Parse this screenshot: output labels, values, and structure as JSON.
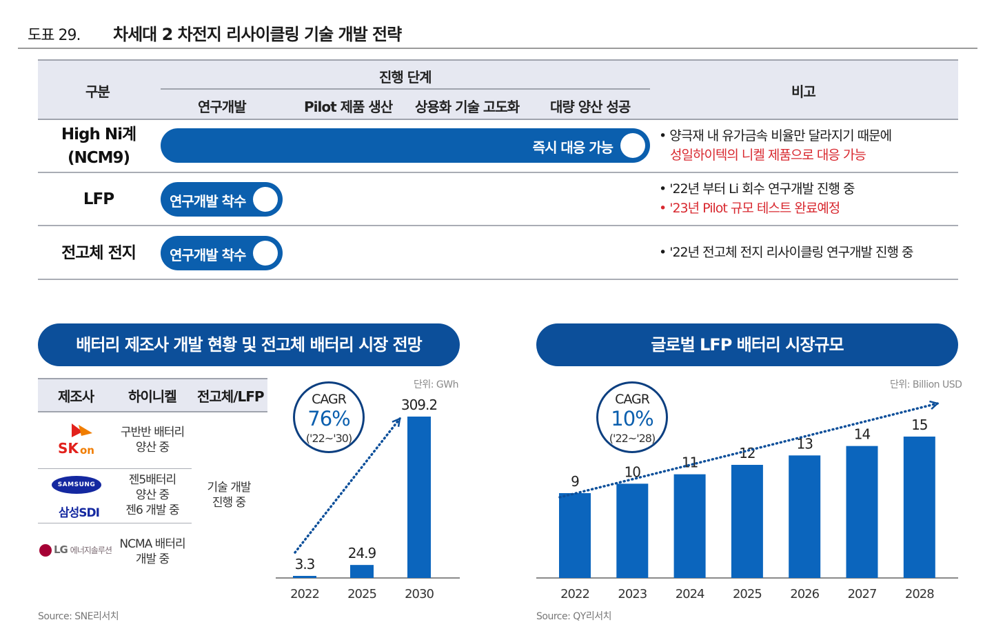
{
  "figure": {
    "number": "도표 29.",
    "title": "차세대 2 차전지 리사이클링 기술 개발 전략"
  },
  "strategy_table": {
    "header": {
      "category": "구분",
      "stage_group": "진행 단계",
      "stages": [
        "연구개발",
        "Pilot 제품 생산",
        "상용화 기술 고도화",
        "대량 양산 성공"
      ],
      "remarks": "비고"
    },
    "rows": [
      {
        "label_line1": "High Ni계",
        "label_line2": "(NCM9)",
        "bar_label": "즉시 대응 가능",
        "progress": 1.0,
        "notes": [
          {
            "text": "• 양극재 내 유가금속 비율만 달라지기 때문에",
            "color": "#1a1a1a"
          },
          {
            "text": "성일하이텍의 니켈 제품으로 대응 가능",
            "color": "#d8282f"
          }
        ]
      },
      {
        "label_line1": "LFP",
        "bar_label": "연구개발 착수",
        "progress": 0.25,
        "notes": [
          {
            "text": "• '22년 부터 Li 회수 연구개발 진행 중",
            "color": "#1a1a1a"
          },
          {
            "text": "• '23년 Pilot 규모 테스트 완료예정",
            "color": "#d8282f"
          }
        ]
      },
      {
        "label_line1": "전고체 전지",
        "bar_label": "연구개발 착수",
        "progress": 0.25,
        "notes": [
          {
            "text": "• '22년 전고체 전지 리사이클링 연구개발 진행 중",
            "color": "#1a1a1a"
          }
        ]
      }
    ]
  },
  "left_panel": {
    "banner": "배터리 제조사 개발 현황 및 전고체 배터리 시장 전망",
    "unit": "단위: GWh",
    "source": "Source: SNE리서치",
    "maker_table": {
      "headers": [
        "제조사",
        "하이니켈",
        "전고체/LFP"
      ],
      "rows": [
        {
          "maker": "SK on",
          "maker_logo": "SK",
          "maker_logo_suffix": "on",
          "high_nickel": [
            "구반반 배터리",
            "양산 중"
          ]
        },
        {
          "maker": "삼성SDI",
          "maker_logo": "SAMSUNG",
          "maker_sub": "삼성SDI",
          "high_nickel": [
            "젠5배터리",
            "양산 중",
            "젠6 개발 중"
          ]
        },
        {
          "maker": "LG에너지솔루션",
          "maker_logo": "LG",
          "maker_sub": "에너지솔루션",
          "high_nickel": [
            "NCMA 배터리",
            "개발 중"
          ]
        }
      ],
      "solid_state_lfp": [
        "기술 개발",
        "진행 중"
      ]
    },
    "cagr": {
      "label": "CAGR",
      "value": "76%",
      "period": "('22~'30)"
    },
    "chart_data": {
      "type": "bar",
      "title": "",
      "categories": [
        "2022",
        "2025",
        "2030"
      ],
      "values": [
        3.3,
        24.9,
        309.2
      ],
      "value_labels": [
        "3.3",
        "24.9",
        "309.2"
      ],
      "unit": "GWh",
      "ylim": [
        0,
        309.2
      ],
      "grid": false,
      "trend_arrow": true,
      "bar_color": "#0b65bd"
    }
  },
  "right_panel": {
    "banner": "글로벌 LFP 배터리 시장규모",
    "unit": "단위: Billion USD",
    "source": "Source: QY리서치",
    "cagr": {
      "label": "CAGR",
      "value": "10%",
      "period": "('22~'28)"
    },
    "chart_data": {
      "type": "bar",
      "title": "",
      "categories": [
        "2022",
        "2023",
        "2024",
        "2025",
        "2026",
        "2027",
        "2028"
      ],
      "values": [
        9,
        10,
        11,
        12,
        13,
        14,
        15
      ],
      "value_labels": [
        "9",
        "10",
        "11",
        "12",
        "13",
        "14",
        "15"
      ],
      "unit": "Billion USD",
      "ylim": [
        0,
        15
      ],
      "grid": false,
      "trend_arrow": true,
      "bar_color": "#0b65bd"
    }
  }
}
